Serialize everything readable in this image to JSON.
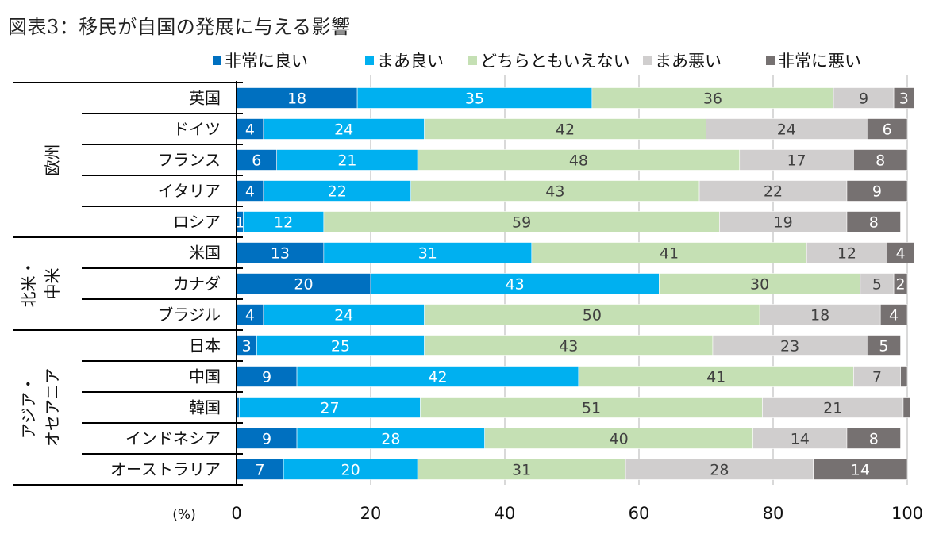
{
  "title": "図表3：移民が自国の発展に与える影響",
  "chart_data": {
    "type": "bar",
    "orientation": "horizontal",
    "stacked": true,
    "title": "図表3：移民が自国の発展に与える影響",
    "xlabel": "(%)",
    "ylabel": "",
    "xlim": [
      0,
      100
    ],
    "xticks": [
      "0",
      "20",
      "40",
      "60",
      "80",
      "100"
    ],
    "grid": true,
    "legend_position": "top",
    "groups": [
      {
        "label": "欧州",
        "categories": [
          "英国",
          "ドイツ",
          "フランス",
          "イタリア",
          "ロシア"
        ]
      },
      {
        "label": "北米・中米",
        "label_lines": [
          "北米・",
          "中米"
        ],
        "categories": [
          "米国",
          "カナダ",
          "ブラジル"
        ]
      },
      {
        "label": "アジア・オセアニア",
        "label_lines": [
          "アジア・",
          "オセアニア"
        ],
        "categories": [
          "日本",
          "中国",
          "韓国",
          "インドネシア",
          "オーストラリア"
        ]
      }
    ],
    "categories": [
      "英国",
      "ドイツ",
      "フランス",
      "イタリア",
      "ロシア",
      "米国",
      "カナダ",
      "ブラジル",
      "日本",
      "中国",
      "韓国",
      "インドネシア",
      "オーストラリア"
    ],
    "series": [
      {
        "name": "非常に良い",
        "color": "#0070c0",
        "label_color": "#ffffff",
        "values": [
          18,
          4,
          6,
          4,
          1,
          13,
          20,
          4,
          3,
          9,
          0.4,
          9,
          7
        ],
        "labels": [
          "18",
          "4",
          "6",
          "4",
          "1",
          "13",
          "20",
          "4",
          "3",
          "9",
          "",
          "9",
          "7"
        ]
      },
      {
        "name": "まあ良い",
        "color": "#00b0f0",
        "label_color": "#ffffff",
        "values": [
          35,
          24,
          21,
          22,
          12,
          31,
          43,
          24,
          25,
          42,
          27,
          28,
          20
        ],
        "labels": [
          "35",
          "24",
          "21",
          "22",
          "12",
          "31",
          "43",
          "24",
          "25",
          "42",
          "27",
          "28",
          "20"
        ]
      },
      {
        "name": "どちらともいえない",
        "color": "#c5e0b4",
        "label_color": "#404040",
        "values": [
          36,
          42,
          48,
          43,
          59,
          41,
          30,
          50,
          43,
          41,
          51,
          40,
          31
        ],
        "labels": [
          "36",
          "42",
          "48",
          "43",
          "59",
          "41",
          "30",
          "50",
          "43",
          "41",
          "51",
          "40",
          "31"
        ]
      },
      {
        "name": "まあ悪い",
        "color": "#d0cece",
        "label_color": "#404040",
        "values": [
          9,
          24,
          17,
          22,
          19,
          12,
          5,
          18,
          23,
          7,
          21,
          14,
          28
        ],
        "labels": [
          "9",
          "24",
          "17",
          "22",
          "19",
          "12",
          "5",
          "18",
          "23",
          "7",
          "21",
          "14",
          "28"
        ]
      },
      {
        "name": "非常に悪い",
        "color": "#767171",
        "label_color": "#ffffff",
        "values": [
          3,
          6,
          8,
          9,
          8,
          4,
          2,
          4,
          5,
          1,
          1,
          8,
          14
        ],
        "labels": [
          "3",
          "6",
          "8",
          "9",
          "8",
          "4",
          "2",
          "4",
          "5",
          "",
          "",
          "8",
          "14"
        ]
      }
    ]
  }
}
